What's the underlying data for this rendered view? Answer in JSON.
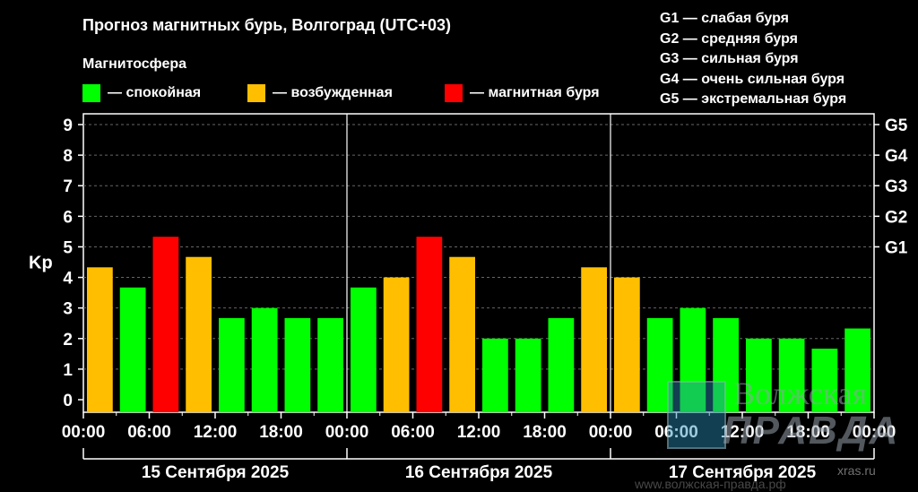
{
  "header": {
    "title": "Прогноз магнитных бурь, Волгоград (UTC+03)",
    "subtitle": "Магнитосфера"
  },
  "legend": [
    {
      "label": "— спокойная",
      "color": "#00ff00"
    },
    {
      "label": "— возбужденная",
      "color": "#ffbf00"
    },
    {
      "label": "— магнитная буря",
      "color": "#ff0000"
    }
  ],
  "g_legend": [
    "G1 — слабая буря",
    "G2 — средняя буря",
    "G3 — сильная буря",
    "G4 — очень сильная буря",
    "G5 — экстремальная буря"
  ],
  "chart_data": {
    "type": "bar",
    "ylabel": "Kp",
    "ylim": [
      0,
      9
    ],
    "y_ticks": [
      "0",
      "1",
      "2",
      "3",
      "4",
      "5",
      "6",
      "7",
      "8",
      "9"
    ],
    "g_ticks": [
      {
        "label": "G1",
        "kp": 5
      },
      {
        "label": "G2",
        "kp": 6
      },
      {
        "label": "G3",
        "kp": 7
      },
      {
        "label": "G4",
        "kp": 8
      },
      {
        "label": "G5",
        "kp": 9
      }
    ],
    "x_tick_labels": [
      "00:00",
      "06:00",
      "12:00",
      "18:00",
      "00:00",
      "06:00",
      "12:00",
      "18:00",
      "00:00",
      "06:00",
      "12:00",
      "18:00",
      "00:00"
    ],
    "days": [
      "15 Сентября 2025",
      "16 Сентября 2025",
      "17 Сентября 2025"
    ],
    "values": [
      4.33,
      3.67,
      5.33,
      4.67,
      2.67,
      3.0,
      2.67,
      2.67,
      3.67,
      4.0,
      5.33,
      4.67,
      2.0,
      2.0,
      2.67,
      4.33,
      4.0,
      2.67,
      3.0,
      2.67,
      2.0,
      2.0,
      1.67,
      2.33
    ],
    "status": [
      "excited",
      "quiet",
      "storm",
      "excited",
      "quiet",
      "quiet",
      "quiet",
      "quiet",
      "quiet",
      "excited",
      "storm",
      "excited",
      "quiet",
      "quiet",
      "quiet",
      "excited",
      "excited",
      "quiet",
      "quiet",
      "quiet",
      "quiet",
      "quiet",
      "quiet",
      "quiet"
    ],
    "colors": {
      "quiet": "#00ff00",
      "excited": "#ffbf00",
      "storm": "#ff0000"
    },
    "grid": true
  },
  "watermark": {
    "line1": "Волжская",
    "line2": "ПРАВДА",
    "site1": "xras.ru",
    "site2": "www.волжская-правда.рф"
  }
}
